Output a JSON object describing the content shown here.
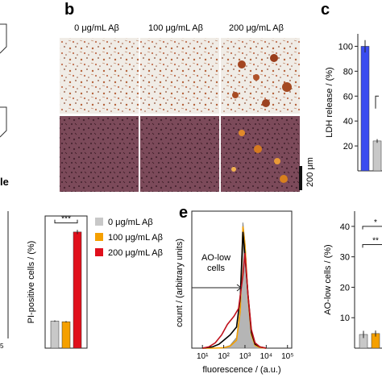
{
  "panels": {
    "b": {
      "letter": "b",
      "columns": [
        "0 μg/mL Aβ",
        "100 μg/mL Aβ",
        "200 μg/mL Aβ"
      ],
      "scale_bar": "200 μm"
    },
    "c": {
      "letter": "c"
    },
    "e": {
      "letter": "e"
    },
    "a_fragment": {
      "letter_partial": "le",
      "axis_tick_partial": "5"
    }
  },
  "legend": {
    "items": [
      {
        "label": "0 μg/mL Aβ",
        "color": "#c8c8c8"
      },
      {
        "label": "100 μg/mL Aβ",
        "color": "#f5a000"
      },
      {
        "label": "200 μg/mL Aβ",
        "color": "#e0101c"
      }
    ]
  },
  "chart_data": [
    {
      "id": "ldh",
      "type": "bar",
      "ylabel": "LDH release / (%)",
      "ylim": [
        0,
        110
      ],
      "yticks": [
        20,
        40,
        60,
        80,
        100
      ],
      "categories": [
        "",
        ""
      ],
      "values": [
        100,
        24
      ],
      "errors": [
        5,
        1.5
      ],
      "colors": [
        "#3a4cf0",
        "#c8c8c8"
      ]
    },
    {
      "id": "pi",
      "type": "bar",
      "ylabel": "PI-positive cells / (%)",
      "categories": [
        "0 μg/mL Aβ",
        "100 μg/mL Aβ",
        "200 μg/mL Aβ"
      ],
      "values": [
        3.9,
        3.8,
        16.7
      ],
      "errors": [
        0.1,
        0.1,
        0.3
      ],
      "colors": [
        "#c8c8c8",
        "#f5a000",
        "#e0101c"
      ],
      "significance": "***"
    },
    {
      "id": "flow",
      "type": "line",
      "xlabel": "fluorescence / (a.u.)",
      "ylabel": "count / (arbitrary units)",
      "xscale": "log",
      "xticks": [
        "10¹",
        "10²",
        "10³",
        "10⁴",
        "10⁵"
      ],
      "xtick_values": [
        10,
        100,
        1000,
        10000,
        100000
      ],
      "annotation": "AO-low\ncells",
      "annotation_lines": [
        "AO-low",
        "cells"
      ],
      "series": [
        {
          "color": "#999999",
          "fill": true,
          "x": [
            10,
            30,
            100,
            200,
            400,
            600,
            800,
            1000,
            1400,
            2000,
            3000,
            5000,
            10000
          ],
          "y": [
            0,
            0,
            0.5,
            2,
            8,
            30,
            95,
            80,
            40,
            12,
            3,
            1,
            0
          ]
        },
        {
          "color": "#f5a000",
          "x": [
            10,
            30,
            100,
            200,
            400,
            600,
            800,
            1000,
            1400,
            2000,
            3000,
            5000,
            10000
          ],
          "y": [
            0,
            0,
            0.3,
            1.5,
            6,
            28,
            92,
            78,
            38,
            10,
            2,
            0.5,
            0
          ]
        },
        {
          "color": "#000000",
          "x": [
            10,
            30,
            60,
            100,
            200,
            400,
            600,
            800,
            1000,
            1400,
            2000,
            3000,
            5000,
            10000
          ],
          "y": [
            0,
            1,
            3,
            6,
            10,
            16,
            38,
            88,
            70,
            40,
            12,
            3,
            1,
            0
          ]
        },
        {
          "color": "#c0101c",
          "x": [
            10,
            20,
            40,
            80,
            150,
            300,
            500,
            800,
            1000,
            1400,
            2000,
            3000,
            5000,
            10000
          ],
          "y": [
            0,
            1,
            4,
            10,
            18,
            24,
            30,
            55,
            72,
            40,
            14,
            4,
            1,
            0
          ]
        }
      ]
    },
    {
      "id": "ao",
      "type": "bar",
      "ylabel": "AO-low cells / (%)",
      "ylim": [
        0,
        45
      ],
      "yticks": [
        10,
        20,
        30,
        40
      ],
      "categories": [
        "",
        ""
      ],
      "values": [
        4.5,
        4.8
      ],
      "errors": [
        1.2,
        1.0
      ],
      "colors": [
        "#c8c8c8",
        "#f5a000"
      ],
      "significance": [
        "**",
        "*"
      ]
    }
  ]
}
